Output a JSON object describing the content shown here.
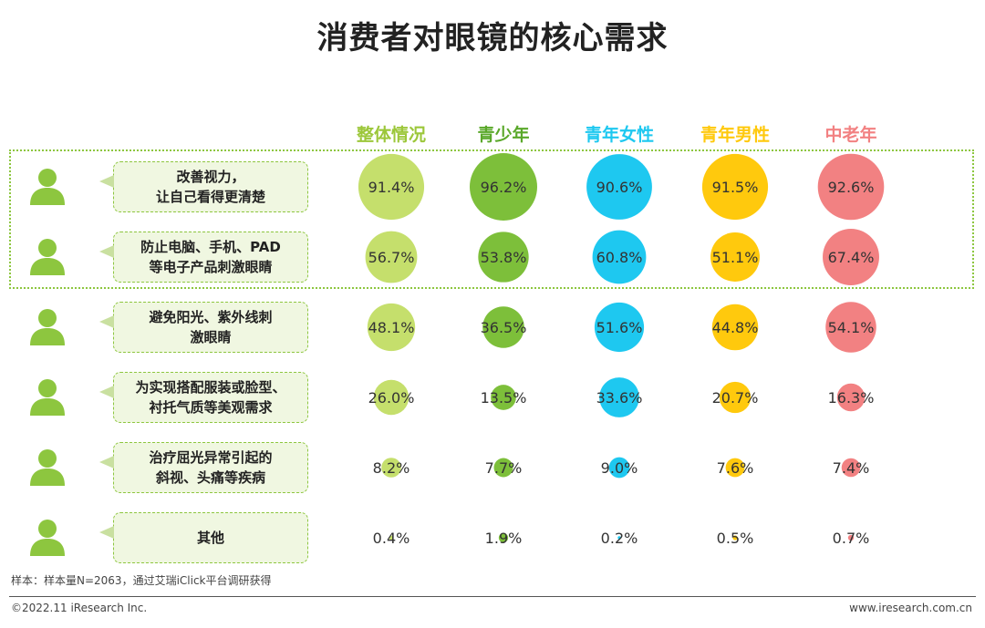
{
  "title": "消费者对眼镜的核心需求",
  "note": "样本：样本量N=2063，通过艾瑞iClick平台调研获得",
  "footer_left": "©2022.11 iResearch Inc.",
  "footer_right": "www.iresearch.com.cn",
  "chart_data": {
    "type": "bubble-table",
    "unit": "%",
    "series": [
      {
        "name": "整体情况",
        "color": "#c5df6c",
        "values": [
          91.4,
          56.7,
          48.1,
          26.0,
          8.2,
          0.4
        ]
      },
      {
        "name": "青少年",
        "color": "#7dbf3a",
        "values": [
          96.2,
          53.8,
          36.5,
          13.5,
          7.7,
          1.9
        ]
      },
      {
        "name": "青年女性",
        "color": "#1ec8f0",
        "values": [
          90.6,
          60.8,
          51.6,
          33.6,
          9.0,
          0.2
        ]
      },
      {
        "name": "青年男性",
        "color": "#ffc90d",
        "values": [
          91.5,
          51.1,
          44.8,
          20.7,
          7.6,
          0.5
        ]
      },
      {
        "name": "中老年",
        "color": "#f28182",
        "values": [
          92.6,
          67.4,
          54.1,
          16.3,
          7.4,
          0.7
        ]
      }
    ],
    "categories": [
      {
        "line1": "改善视力，",
        "line2": "让自己看得更清楚"
      },
      {
        "line1": "防止电脑、手机、PAD",
        "line2": "等电子产品刺激眼睛"
      },
      {
        "line1": "避免阳光、紫外线刺",
        "line2": "激眼睛"
      },
      {
        "line1": "为实现搭配服装或脸型、",
        "line2": "衬托气质等美观需求"
      },
      {
        "line1": "治疗屈光异常引起的",
        "line2": "斜视、头痛等疾病"
      },
      {
        "line1": "其他",
        "line2": ""
      }
    ],
    "highlighted_rows": [
      0,
      1
    ],
    "highlight_color": "#8dc63f",
    "icon": "person-icon",
    "icon_color": "#8dc63f"
  }
}
